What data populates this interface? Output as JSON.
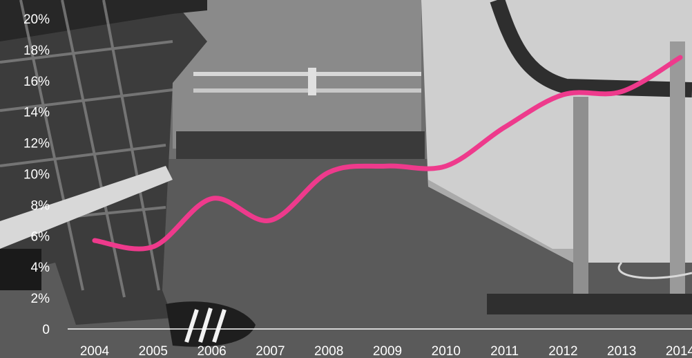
{
  "chart_data": {
    "type": "line",
    "x": [
      "2004",
      "2005",
      "2006",
      "2007",
      "2008",
      "2009",
      "2010",
      "2011",
      "2012",
      "2013",
      "2014"
    ],
    "y_ticks": [
      "0",
      "2%",
      "4%",
      "6%",
      "8%",
      "10%",
      "12%",
      "14%",
      "16%",
      "18%",
      "20%"
    ],
    "series": [
      {
        "values": [
          5.7,
          5.3,
          8.4,
          7.0,
          10.1,
          10.5,
          10.5,
          13.0,
          15.1,
          15.3,
          17.5
        ]
      }
    ],
    "ylim": [
      0,
      20
    ],
    "grid": false,
    "line_color": "#ee3a8c",
    "axis_color": "#ffffff",
    "background": "black-and-white photograph"
  }
}
